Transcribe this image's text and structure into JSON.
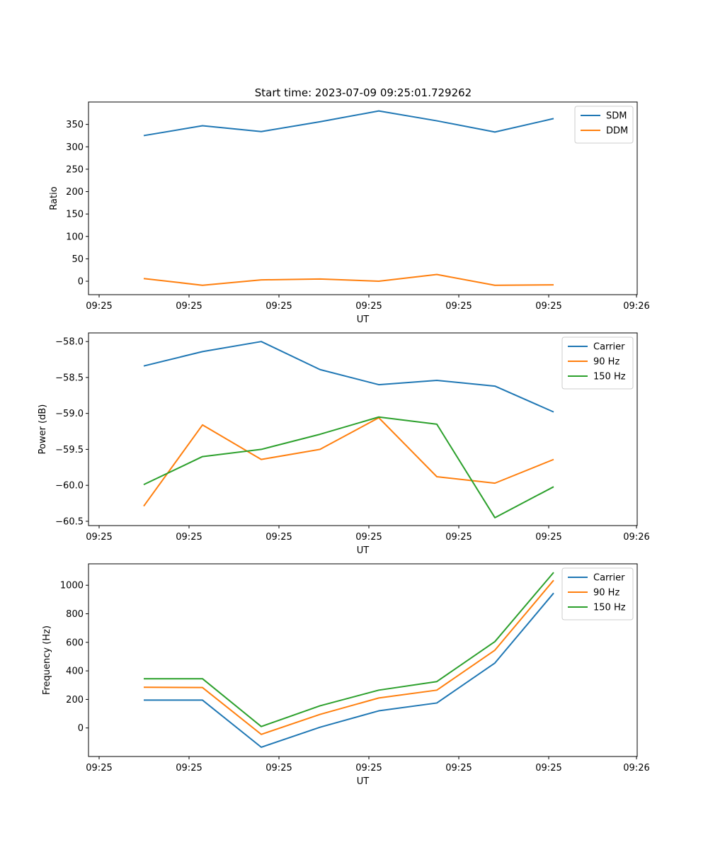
{
  "title": "Start time: 2023-07-09 09:25:01.729262",
  "colors": {
    "blue": "#1f77b4",
    "orange": "#ff7f0e",
    "green": "#2ca02c"
  },
  "chart_data": [
    {
      "type": "line",
      "title": "Start time: 2023-07-09 09:25:01.729262",
      "xlabel": "UT",
      "ylabel": "Ratio",
      "x": [
        1,
        2,
        3,
        4,
        5,
        6,
        7,
        8
      ],
      "xlim": [
        0.19,
        9.38
      ],
      "x_ticks": [
        0.38,
        1.885,
        3.39,
        4.895,
        6.4,
        7.905,
        9.41
      ],
      "x_tick_labels": [
        "09:25",
        "09:25",
        "09:25",
        "09:25",
        "09:25",
        "09:25",
        "09:25",
        "09:26"
      ],
      "x_tick_positions_index": [
        0,
        1,
        2,
        3,
        4,
        5,
        6,
        7
      ],
      "ylim": [
        -30,
        400
      ],
      "y_ticks": [
        0,
        50,
        100,
        150,
        200,
        250,
        300,
        350
      ],
      "y_tick_labels": [
        "0",
        "50",
        "100",
        "150",
        "200",
        "250",
        "300",
        "350"
      ],
      "legend_position": "top-right",
      "series": [
        {
          "name": "SDM",
          "color": "#1f77b4",
          "values": [
            325,
            347,
            334,
            356,
            380,
            358,
            333,
            363
          ]
        },
        {
          "name": "DDM",
          "color": "#ff7f0e",
          "values": [
            6,
            -9,
            3,
            5,
            0,
            15,
            -9,
            -8
          ]
        }
      ]
    },
    {
      "type": "line",
      "xlabel": "UT",
      "ylabel": "Power (dB)",
      "x": [
        1,
        2,
        3,
        4,
        5,
        6,
        7,
        8
      ],
      "ylim": [
        -60.56,
        -57.88
      ],
      "y_ticks": [
        -60.5,
        -60.0,
        -59.5,
        -59.0,
        -58.5,
        -58.0
      ],
      "y_tick_labels": [
        "−60.5",
        "−60.0",
        "−59.5",
        "−59.0",
        "−58.5",
        "−58.0"
      ],
      "x_tick_labels": [
        "09:25",
        "09:25",
        "09:25",
        "09:25",
        "09:25",
        "09:25",
        "09:25",
        "09:26"
      ],
      "legend_position": "top-right",
      "series": [
        {
          "name": "Carrier",
          "color": "#1f77b4",
          "values": [
            -58.34,
            -58.14,
            -58.0,
            -58.39,
            -58.6,
            -58.54,
            -58.62,
            -58.98
          ]
        },
        {
          "name": "90 Hz",
          "color": "#ff7f0e",
          "values": [
            -60.29,
            -59.16,
            -59.64,
            -59.5,
            -59.06,
            -59.88,
            -59.97,
            -59.64
          ]
        },
        {
          "name": "150 Hz",
          "color": "#2ca02c",
          "values": [
            -59.99,
            -59.6,
            -59.5,
            -59.29,
            -59.05,
            -59.15,
            -60.45,
            -60.02
          ]
        }
      ]
    },
    {
      "type": "line",
      "xlabel": "UT",
      "ylabel": "Frequency (Hz)",
      "x": [
        1,
        2,
        3,
        4,
        5,
        6,
        7,
        8
      ],
      "ylim": [
        -200,
        1150
      ],
      "y_ticks": [
        0,
        200,
        400,
        600,
        800,
        1000
      ],
      "y_tick_labels": [
        "0",
        "200",
        "400",
        "600",
        "800",
        "1000"
      ],
      "x_tick_labels": [
        "09:25",
        "09:25",
        "09:25",
        "09:25",
        "09:25",
        "09:25",
        "09:25",
        "09:26"
      ],
      "legend_position": "top-right",
      "series": [
        {
          "name": "Carrier",
          "color": "#1f77b4",
          "values": [
            195,
            195,
            -135,
            5,
            120,
            175,
            455,
            945
          ]
        },
        {
          "name": "90 Hz",
          "color": "#ff7f0e",
          "values": [
            285,
            283,
            -45,
            95,
            210,
            265,
            545,
            1035
          ]
        },
        {
          "name": "150 Hz",
          "color": "#2ca02c",
          "values": [
            345,
            345,
            10,
            155,
            265,
            325,
            605,
            1090
          ]
        }
      ]
    }
  ]
}
